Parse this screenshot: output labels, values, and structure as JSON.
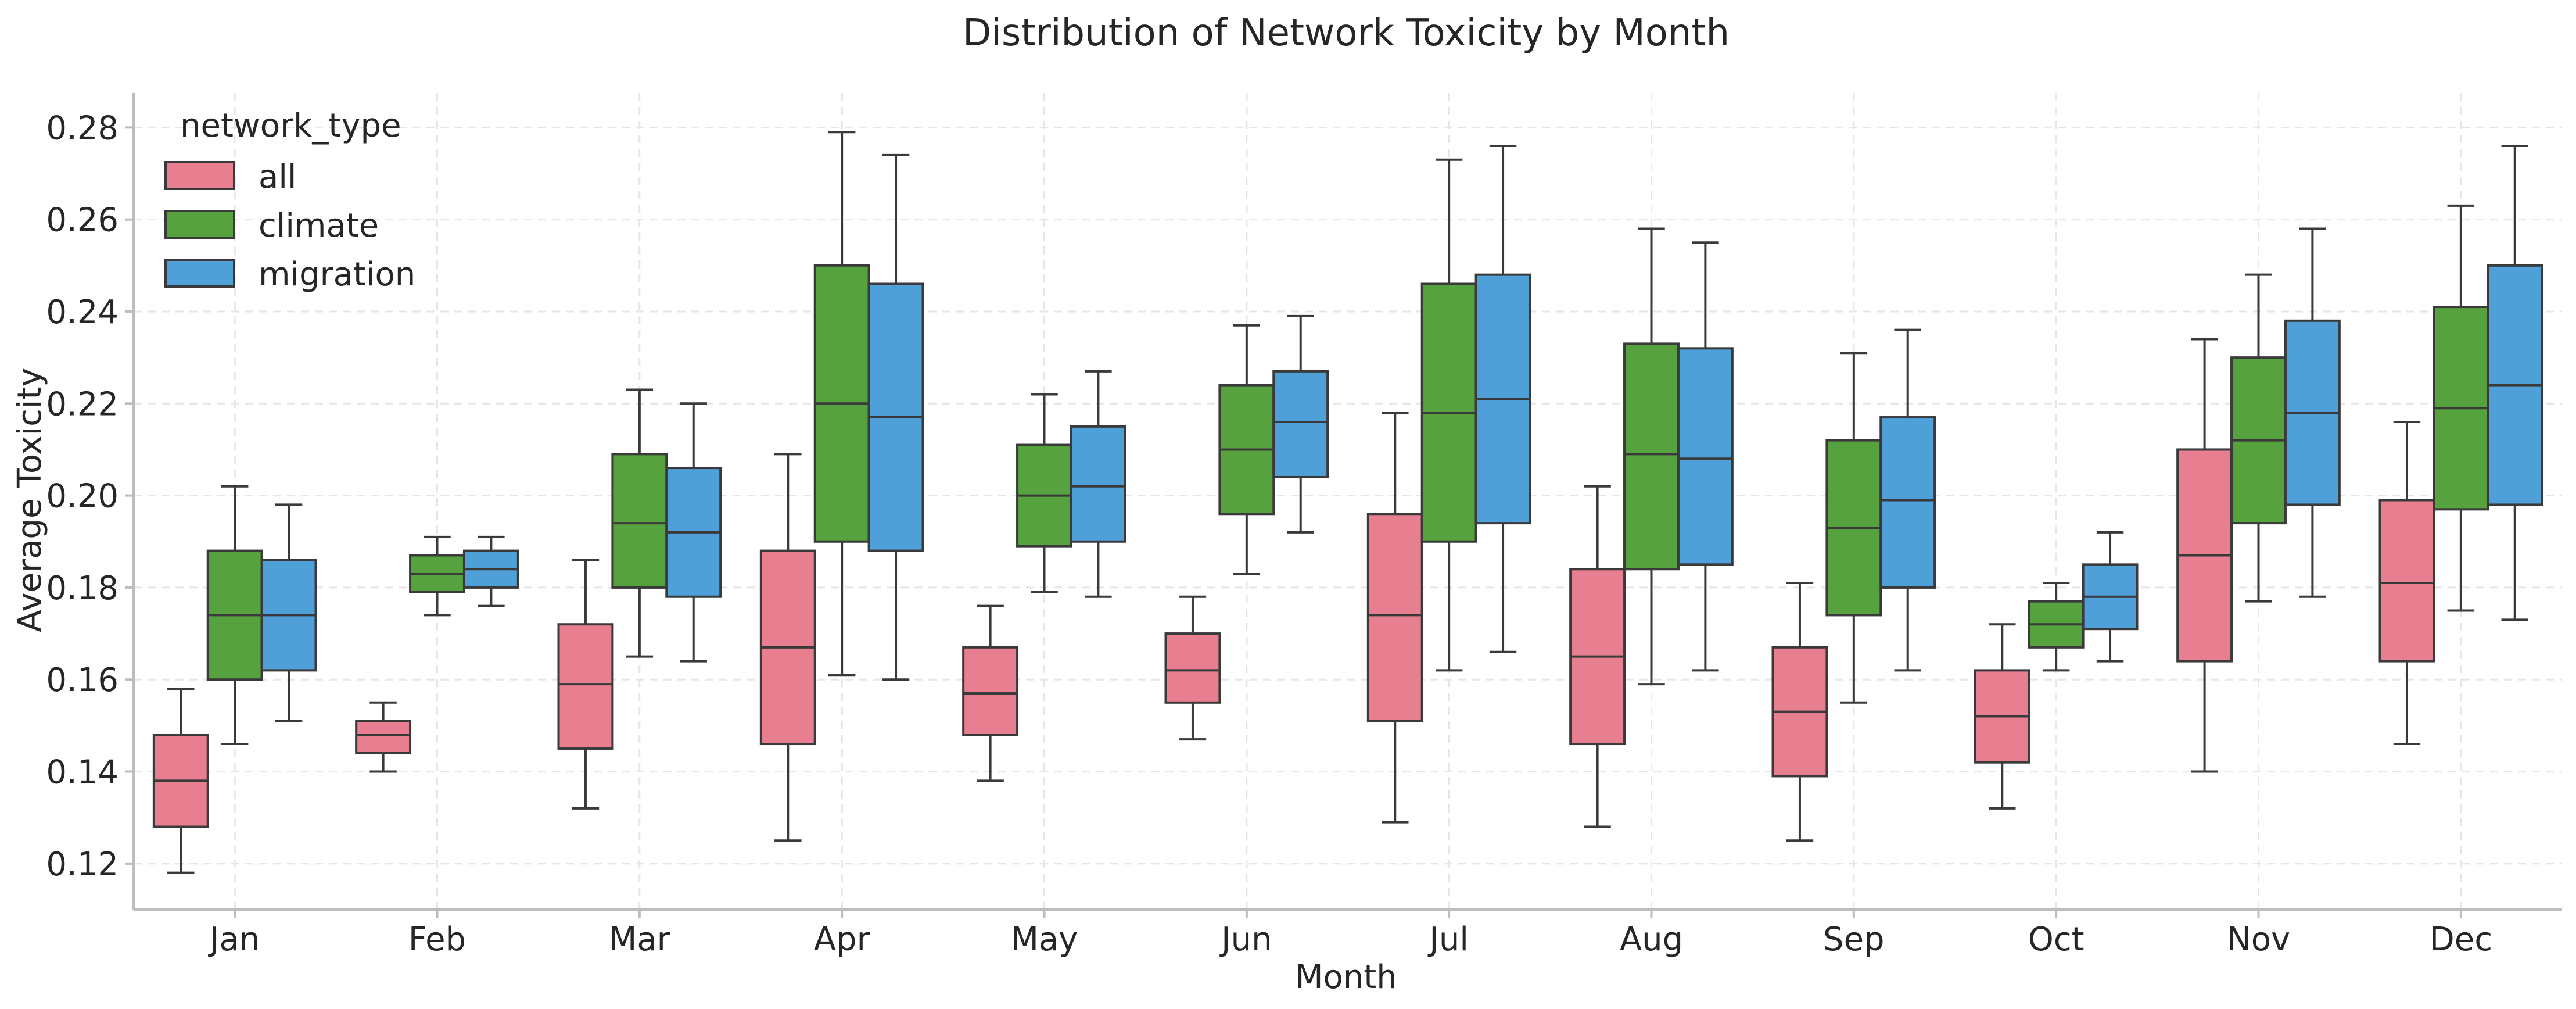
{
  "chart_data": {
    "type": "box",
    "title": "Distribution of Network Toxicity by Month",
    "xlabel": "Month",
    "ylabel": "Average Toxicity",
    "ylim": [
      0.11,
      0.2875
    ],
    "yticks": [
      0.12,
      0.14,
      0.16,
      0.18,
      0.2,
      0.22,
      0.24,
      0.26,
      0.28
    ],
    "ytick_labels": [
      "0.12",
      "0.14",
      "0.16",
      "0.18",
      "0.20",
      "0.22",
      "0.24",
      "0.26",
      "0.28"
    ],
    "grid": true,
    "legend": {
      "title": "network_type",
      "placement": "top-left"
    },
    "categories": [
      "Jan",
      "Feb",
      "Mar",
      "Apr",
      "May",
      "Jun",
      "Jul",
      "Aug",
      "Sep",
      "Oct",
      "Nov",
      "Dec"
    ],
    "series": [
      {
        "name": "all",
        "color": "#e87f91",
        "boxes": [
          {
            "min": 0.118,
            "q1": 0.128,
            "median": 0.138,
            "q3": 0.148,
            "max": 0.158
          },
          {
            "min": 0.14,
            "q1": 0.144,
            "median": 0.148,
            "q3": 0.151,
            "max": 0.155
          },
          {
            "min": 0.132,
            "q1": 0.145,
            "median": 0.159,
            "q3": 0.172,
            "max": 0.186
          },
          {
            "min": 0.125,
            "q1": 0.146,
            "median": 0.167,
            "q3": 0.188,
            "max": 0.209
          },
          {
            "min": 0.138,
            "q1": 0.148,
            "median": 0.157,
            "q3": 0.167,
            "max": 0.176
          },
          {
            "min": 0.147,
            "q1": 0.155,
            "median": 0.162,
            "q3": 0.17,
            "max": 0.178
          },
          {
            "min": 0.129,
            "q1": 0.151,
            "median": 0.174,
            "q3": 0.196,
            "max": 0.218
          },
          {
            "min": 0.128,
            "q1": 0.146,
            "median": 0.165,
            "q3": 0.184,
            "max": 0.202
          },
          {
            "min": 0.125,
            "q1": 0.139,
            "median": 0.153,
            "q3": 0.167,
            "max": 0.181
          },
          {
            "min": 0.132,
            "q1": 0.142,
            "median": 0.152,
            "q3": 0.162,
            "max": 0.172
          },
          {
            "min": 0.14,
            "q1": 0.164,
            "median": 0.187,
            "q3": 0.21,
            "max": 0.234
          },
          {
            "min": 0.146,
            "q1": 0.164,
            "median": 0.181,
            "q3": 0.199,
            "max": 0.216
          }
        ]
      },
      {
        "name": "climate",
        "color": "#56a23e",
        "boxes": [
          {
            "min": 0.146,
            "q1": 0.16,
            "median": 0.174,
            "q3": 0.188,
            "max": 0.202
          },
          {
            "min": 0.174,
            "q1": 0.179,
            "median": 0.183,
            "q3": 0.187,
            "max": 0.191
          },
          {
            "min": 0.165,
            "q1": 0.18,
            "median": 0.194,
            "q3": 0.209,
            "max": 0.223
          },
          {
            "min": 0.161,
            "q1": 0.19,
            "median": 0.22,
            "q3": 0.25,
            "max": 0.279
          },
          {
            "min": 0.179,
            "q1": 0.189,
            "median": 0.2,
            "q3": 0.211,
            "max": 0.222
          },
          {
            "min": 0.183,
            "q1": 0.196,
            "median": 0.21,
            "q3": 0.224,
            "max": 0.237
          },
          {
            "min": 0.162,
            "q1": 0.19,
            "median": 0.218,
            "q3": 0.246,
            "max": 0.273
          },
          {
            "min": 0.159,
            "q1": 0.184,
            "median": 0.209,
            "q3": 0.233,
            "max": 0.258
          },
          {
            "min": 0.155,
            "q1": 0.174,
            "median": 0.193,
            "q3": 0.212,
            "max": 0.231
          },
          {
            "min": 0.162,
            "q1": 0.167,
            "median": 0.172,
            "q3": 0.177,
            "max": 0.181
          },
          {
            "min": 0.177,
            "q1": 0.194,
            "median": 0.212,
            "q3": 0.23,
            "max": 0.248
          },
          {
            "min": 0.175,
            "q1": 0.197,
            "median": 0.219,
            "q3": 0.241,
            "max": 0.263
          }
        ]
      },
      {
        "name": "migration",
        "color": "#4f9fd9",
        "boxes": [
          {
            "min": 0.151,
            "q1": 0.162,
            "median": 0.174,
            "q3": 0.186,
            "max": 0.198
          },
          {
            "min": 0.176,
            "q1": 0.18,
            "median": 0.184,
            "q3": 0.188,
            "max": 0.191
          },
          {
            "min": 0.164,
            "q1": 0.178,
            "median": 0.192,
            "q3": 0.206,
            "max": 0.22
          },
          {
            "min": 0.16,
            "q1": 0.188,
            "median": 0.217,
            "q3": 0.246,
            "max": 0.274
          },
          {
            "min": 0.178,
            "q1": 0.19,
            "median": 0.202,
            "q3": 0.215,
            "max": 0.227
          },
          {
            "min": 0.192,
            "q1": 0.204,
            "median": 0.216,
            "q3": 0.227,
            "max": 0.239
          },
          {
            "min": 0.166,
            "q1": 0.194,
            "median": 0.221,
            "q3": 0.248,
            "max": 0.276
          },
          {
            "min": 0.162,
            "q1": 0.185,
            "median": 0.208,
            "q3": 0.232,
            "max": 0.255
          },
          {
            "min": 0.162,
            "q1": 0.18,
            "median": 0.199,
            "q3": 0.217,
            "max": 0.236
          },
          {
            "min": 0.164,
            "q1": 0.171,
            "median": 0.178,
            "q3": 0.185,
            "max": 0.192
          },
          {
            "min": 0.178,
            "q1": 0.198,
            "median": 0.218,
            "q3": 0.238,
            "max": 0.258
          },
          {
            "min": 0.173,
            "q1": 0.198,
            "median": 0.224,
            "q3": 0.25,
            "max": 0.276
          }
        ]
      }
    ]
  }
}
